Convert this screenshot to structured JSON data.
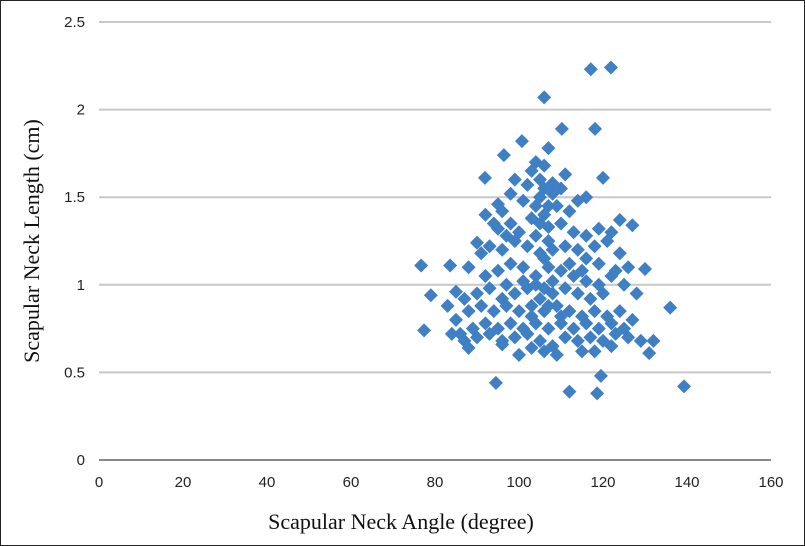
{
  "chart_data": {
    "type": "scatter",
    "title": "",
    "xlabel": "Scapular Neck Angle (degree)",
    "ylabel": "Scapular Neck Length (cm)",
    "xlim": [
      0,
      160
    ],
    "ylim": [
      0,
      2.5
    ],
    "xticks": [
      "0",
      "20",
      "40",
      "60",
      "80",
      "100",
      "120",
      "140",
      "160"
    ],
    "yticks": [
      "0",
      "0.5",
      "1",
      "1.5",
      "2",
      "2.5"
    ],
    "grid": "horizontal",
    "legend": "none",
    "marker": "diamond",
    "color": "#3f7fc4",
    "points": [
      [
        117.1,
        2.23
      ],
      [
        121.9,
        2.24
      ],
      [
        106,
        2.07
      ],
      [
        100.7,
        1.82
      ],
      [
        110.2,
        1.89
      ],
      [
        118.1,
        1.89
      ],
      [
        91.9,
        1.61
      ],
      [
        96.4,
        1.74
      ],
      [
        120,
        1.61
      ],
      [
        76.7,
        1.11
      ],
      [
        77.4,
        0.74
      ],
      [
        79,
        0.94
      ],
      [
        83.6,
        1.11
      ],
      [
        94.5,
        0.44
      ],
      [
        112,
        0.39
      ],
      [
        118.6,
        0.38
      ],
      [
        139.3,
        0.42
      ],
      [
        136,
        0.87
      ],
      [
        132,
        0.68
      ],
      [
        131,
        0.61
      ],
      [
        119.5,
        0.48
      ],
      [
        130,
        1.09
      ],
      [
        127,
        1.34
      ],
      [
        124,
        1.37
      ],
      [
        104,
        1.7
      ],
      [
        106,
        1.68
      ],
      [
        103,
        1.65
      ],
      [
        107,
        1.78
      ],
      [
        99,
        1.6
      ],
      [
        108,
        1.58
      ],
      [
        111,
        1.63
      ],
      [
        114,
        1.48
      ],
      [
        116,
        1.5
      ],
      [
        98,
        1.52
      ],
      [
        95,
        1.46
      ],
      [
        96,
        1.42
      ],
      [
        101,
        1.48
      ],
      [
        105,
        1.5
      ],
      [
        109,
        1.45
      ],
      [
        112,
        1.42
      ],
      [
        106,
        1.4
      ],
      [
        103,
        1.38
      ],
      [
        98,
        1.35
      ],
      [
        95,
        1.32
      ],
      [
        100,
        1.3
      ],
      [
        104,
        1.28
      ],
      [
        107,
        1.33
      ],
      [
        110,
        1.35
      ],
      [
        113,
        1.3
      ],
      [
        116,
        1.28
      ],
      [
        119,
        1.32
      ],
      [
        122,
        1.3
      ],
      [
        118,
        1.22
      ],
      [
        121,
        1.25
      ],
      [
        124,
        1.18
      ],
      [
        126,
        1.1
      ],
      [
        123,
        1.08
      ],
      [
        119,
        1.12
      ],
      [
        116,
        1.15
      ],
      [
        114,
        1.2
      ],
      [
        111,
        1.22
      ],
      [
        108,
        1.2
      ],
      [
        105,
        1.18
      ],
      [
        102,
        1.22
      ],
      [
        99,
        1.25
      ],
      [
        96,
        1.2
      ],
      [
        93,
        1.22
      ],
      [
        91,
        1.18
      ],
      [
        90,
        1.24
      ],
      [
        88,
        1.1
      ],
      [
        92,
        1.05
      ],
      [
        95,
        1.08
      ],
      [
        98,
        1.12
      ],
      [
        101,
        1.1
      ],
      [
        104,
        1.05
      ],
      [
        107,
        1.1
      ],
      [
        110,
        1.08
      ],
      [
        113,
        1.05
      ],
      [
        116,
        1.02
      ],
      [
        119,
        1.0
      ],
      [
        122,
        1.05
      ],
      [
        125,
        1.0
      ],
      [
        128,
        0.95
      ],
      [
        120,
        0.95
      ],
      [
        117,
        0.92
      ],
      [
        114,
        0.95
      ],
      [
        111,
        0.98
      ],
      [
        108,
        0.95
      ],
      [
        105,
        0.92
      ],
      [
        102,
        0.98
      ],
      [
        99,
        0.95
      ],
      [
        96,
        0.92
      ],
      [
        93,
        0.98
      ],
      [
        90,
        0.95
      ],
      [
        87,
        0.92
      ],
      [
        85,
        0.96
      ],
      [
        88,
        0.85
      ],
      [
        91,
        0.88
      ],
      [
        94,
        0.85
      ],
      [
        97,
        0.88
      ],
      [
        100,
        0.85
      ],
      [
        103,
        0.88
      ],
      [
        106,
        0.85
      ],
      [
        109,
        0.88
      ],
      [
        112,
        0.85
      ],
      [
        115,
        0.82
      ],
      [
        118,
        0.85
      ],
      [
        121,
        0.82
      ],
      [
        124,
        0.85
      ],
      [
        127,
        0.8
      ],
      [
        125,
        0.75
      ],
      [
        122,
        0.78
      ],
      [
        119,
        0.75
      ],
      [
        116,
        0.78
      ],
      [
        113,
        0.75
      ],
      [
        110,
        0.78
      ],
      [
        107,
        0.75
      ],
      [
        104,
        0.78
      ],
      [
        101,
        0.75
      ],
      [
        98,
        0.78
      ],
      [
        95,
        0.75
      ],
      [
        92,
        0.78
      ],
      [
        89,
        0.75
      ],
      [
        86,
        0.72
      ],
      [
        84,
        0.72
      ],
      [
        87,
        0.68
      ],
      [
        90,
        0.7
      ],
      [
        93,
        0.72
      ],
      [
        96,
        0.68
      ],
      [
        99,
        0.7
      ],
      [
        102,
        0.72
      ],
      [
        105,
        0.68
      ],
      [
        108,
        0.65
      ],
      [
        111,
        0.7
      ],
      [
        114,
        0.68
      ],
      [
        117,
        0.7
      ],
      [
        120,
        0.68
      ],
      [
        123,
        0.72
      ],
      [
        126,
        0.7
      ],
      [
        129,
        0.68
      ],
      [
        122,
        0.65
      ],
      [
        118,
        0.62
      ],
      [
        115,
        0.62
      ],
      [
        109,
        0.6
      ],
      [
        106,
        0.62
      ],
      [
        103,
        0.64
      ],
      [
        100,
        0.6
      ],
      [
        96,
        0.66
      ],
      [
        88,
        0.64
      ],
      [
        85,
        0.8
      ],
      [
        83,
        0.88
      ],
      [
        92,
        1.4
      ],
      [
        94,
        1.35
      ],
      [
        97,
        1.28
      ],
      [
        106,
        1.55
      ],
      [
        108,
        1.52
      ],
      [
        105,
        1.6
      ],
      [
        102,
        1.57
      ],
      [
        110,
        1.55
      ],
      [
        104,
        1.45
      ],
      [
        107,
        1.25
      ],
      [
        106,
        1.15
      ],
      [
        105,
        1.35
      ],
      [
        107,
        1.45
      ],
      [
        104,
        1.0
      ],
      [
        106,
        0.98
      ],
      [
        108,
        1.02
      ],
      [
        103,
        0.82
      ],
      [
        110,
        0.82
      ],
      [
        107,
        0.88
      ],
      [
        112,
        1.12
      ],
      [
        115,
        1.08
      ],
      [
        101,
        1.02
      ],
      [
        97,
        1.0
      ]
    ]
  }
}
